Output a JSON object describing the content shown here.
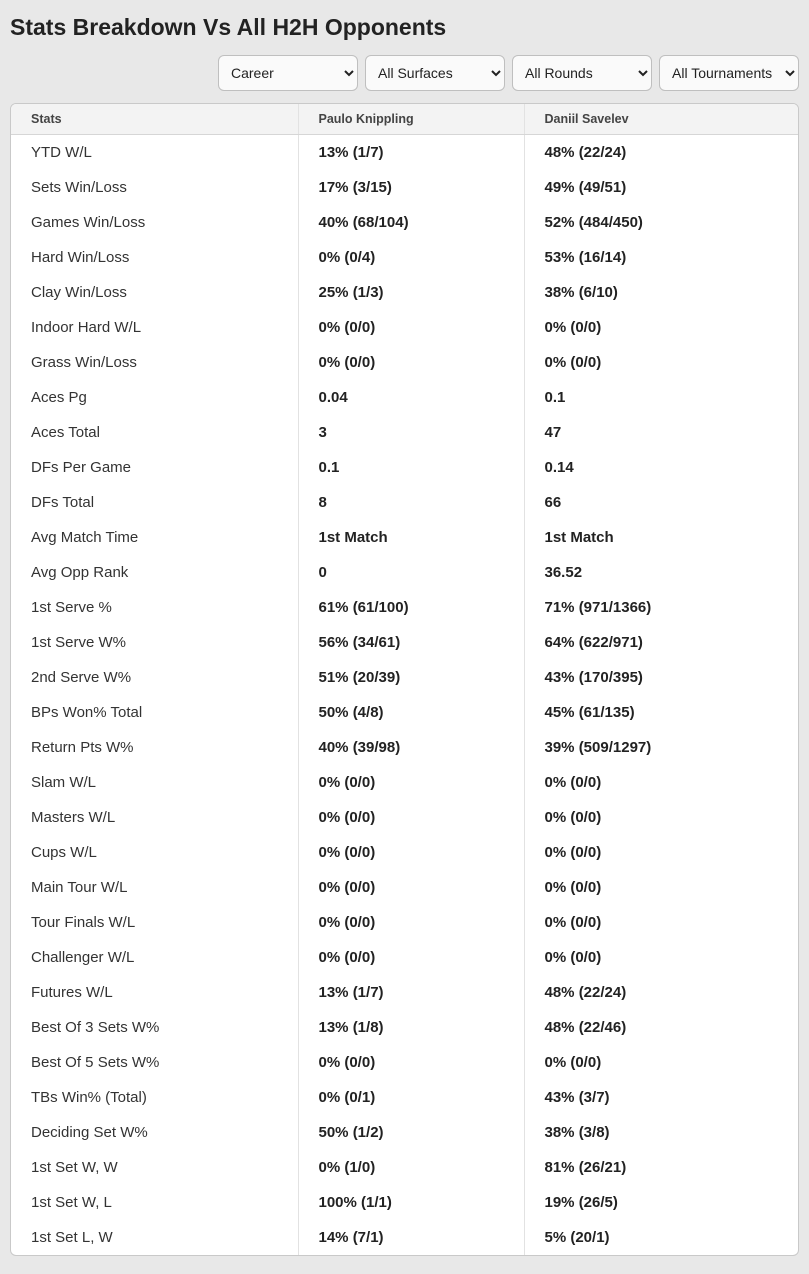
{
  "title": "Stats Breakdown Vs All H2H Opponents",
  "filters": {
    "period": "Career",
    "surface": "All Surfaces",
    "round": "All Rounds",
    "tournament": "All Tournaments"
  },
  "columns": {
    "stats": "Stats",
    "p1": "Paulo Knippling",
    "p2": "Daniil Savelev"
  },
  "rows": [
    {
      "stat": "YTD W/L",
      "p1": "13% (1/7)",
      "p2": "48% (22/24)"
    },
    {
      "stat": "Sets Win/Loss",
      "p1": "17% (3/15)",
      "p2": "49% (49/51)"
    },
    {
      "stat": "Games Win/Loss",
      "p1": "40% (68/104)",
      "p2": "52% (484/450)"
    },
    {
      "stat": "Hard Win/Loss",
      "p1": "0% (0/4)",
      "p2": "53% (16/14)"
    },
    {
      "stat": "Clay Win/Loss",
      "p1": "25% (1/3)",
      "p2": "38% (6/10)"
    },
    {
      "stat": "Indoor Hard W/L",
      "p1": "0% (0/0)",
      "p2": "0% (0/0)"
    },
    {
      "stat": "Grass Win/Loss",
      "p1": "0% (0/0)",
      "p2": "0% (0/0)"
    },
    {
      "stat": "Aces Pg",
      "p1": "0.04",
      "p2": "0.1"
    },
    {
      "stat": "Aces Total",
      "p1": "3",
      "p2": "47"
    },
    {
      "stat": "DFs Per Game",
      "p1": "0.1",
      "p2": "0.14"
    },
    {
      "stat": "DFs Total",
      "p1": "8",
      "p2": "66"
    },
    {
      "stat": "Avg Match Time",
      "p1": "1st Match",
      "p2": "1st Match"
    },
    {
      "stat": "Avg Opp Rank",
      "p1": "0",
      "p2": "36.52"
    },
    {
      "stat": "1st Serve %",
      "p1": "61% (61/100)",
      "p2": "71% (971/1366)"
    },
    {
      "stat": "1st Serve W%",
      "p1": "56% (34/61)",
      "p2": "64% (622/971)"
    },
    {
      "stat": "2nd Serve W%",
      "p1": "51% (20/39)",
      "p2": "43% (170/395)"
    },
    {
      "stat": "BPs Won% Total",
      "p1": "50% (4/8)",
      "p2": "45% (61/135)"
    },
    {
      "stat": "Return Pts W%",
      "p1": "40% (39/98)",
      "p2": "39% (509/1297)"
    },
    {
      "stat": "Slam W/L",
      "p1": "0% (0/0)",
      "p2": "0% (0/0)"
    },
    {
      "stat": "Masters W/L",
      "p1": "0% (0/0)",
      "p2": "0% (0/0)"
    },
    {
      "stat": "Cups W/L",
      "p1": "0% (0/0)",
      "p2": "0% (0/0)"
    },
    {
      "stat": "Main Tour W/L",
      "p1": "0% (0/0)",
      "p2": "0% (0/0)"
    },
    {
      "stat": "Tour Finals W/L",
      "p1": "0% (0/0)",
      "p2": "0% (0/0)"
    },
    {
      "stat": "Challenger W/L",
      "p1": "0% (0/0)",
      "p2": "0% (0/0)"
    },
    {
      "stat": "Futures W/L",
      "p1": "13% (1/7)",
      "p2": "48% (22/24)"
    },
    {
      "stat": "Best Of 3 Sets W%",
      "p1": "13% (1/8)",
      "p2": "48% (22/46)"
    },
    {
      "stat": "Best Of 5 Sets W%",
      "p1": "0% (0/0)",
      "p2": "0% (0/0)"
    },
    {
      "stat": "TBs Win% (Total)",
      "p1": "0% (0/1)",
      "p2": "43% (3/7)"
    },
    {
      "stat": "Deciding Set W%",
      "p1": "50% (1/2)",
      "p2": "38% (3/8)"
    },
    {
      "stat": "1st Set W, W",
      "p1": "0% (1/0)",
      "p2": "81% (26/21)"
    },
    {
      "stat": "1st Set W, L",
      "p1": "100% (1/1)",
      "p2": "19% (26/5)"
    },
    {
      "stat": "1st Set L, W",
      "p1": "14% (7/1)",
      "p2": "5% (20/1)"
    }
  ]
}
